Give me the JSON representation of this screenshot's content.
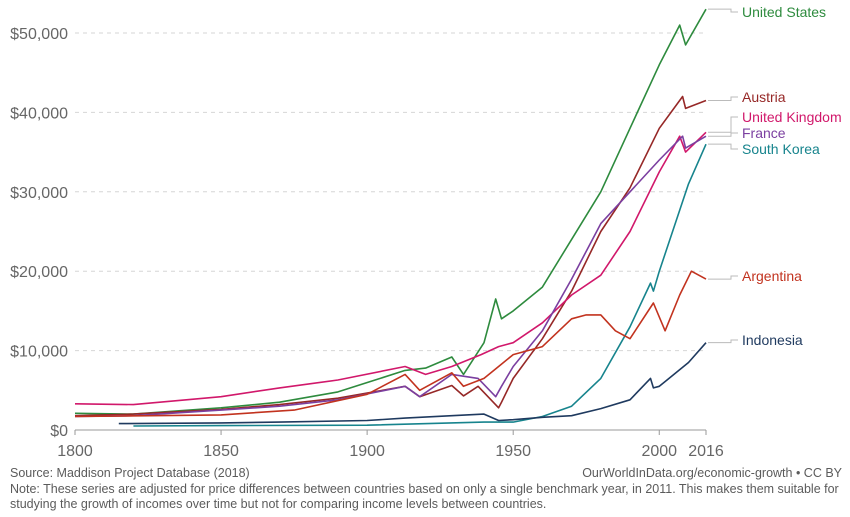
{
  "chart_data": {
    "type": "line",
    "title": "",
    "xlabel": "",
    "ylabel": "",
    "xlim": [
      1800,
      2016
    ],
    "ylim": [
      0,
      53000
    ],
    "grid": "horizontal dashed",
    "legend": "right (line-end labels)",
    "x_ticks": [
      "1800",
      "1850",
      "1900",
      "1950",
      "2000",
      "2016"
    ],
    "x_tick_values": [
      1800,
      1850,
      1900,
      1950,
      2000,
      2016
    ],
    "y_ticks": [
      "$0",
      "$10,000",
      "$20,000",
      "$30,000",
      "$40,000",
      "$50,000"
    ],
    "y_tick_values": [
      0,
      10000,
      20000,
      30000,
      40000,
      50000
    ],
    "series": [
      {
        "name": "United States",
        "color": "#2e8b3e",
        "x": [
          1800,
          1820,
          1850,
          1870,
          1890,
          1913,
          1920,
          1929,
          1933,
          1940,
          1944,
          1946,
          1950,
          1960,
          1970,
          1980,
          1990,
          2000,
          2007,
          2009,
          2016
        ],
        "y": [
          2100,
          2000,
          2800,
          3500,
          4800,
          7500,
          7800,
          9200,
          7000,
          11000,
          16500,
          14000,
          15000,
          18000,
          24000,
          30000,
          38000,
          46000,
          51000,
          48500,
          53000
        ]
      },
      {
        "name": "Austria",
        "color": "#962827",
        "x": [
          1800,
          1820,
          1850,
          1870,
          1890,
          1913,
          1918,
          1929,
          1933,
          1938,
          1945,
          1946,
          1950,
          1960,
          1970,
          1980,
          1990,
          2000,
          2008,
          2009,
          2016
        ],
        "y": [
          1800,
          2000,
          2600,
          3200,
          4000,
          5500,
          4200,
          5600,
          4300,
          5500,
          2800,
          3500,
          6500,
          11500,
          17500,
          25000,
          30500,
          38000,
          42000,
          40500,
          41500
        ]
      },
      {
        "name": "United Kingdom",
        "color": "#d1186b",
        "x": [
          1800,
          1820,
          1850,
          1870,
          1890,
          1913,
          1920,
          1929,
          1939,
          1945,
          1950,
          1960,
          1970,
          1980,
          1990,
          2000,
          2007,
          2009,
          2016
        ],
        "y": [
          3300,
          3200,
          4200,
          5300,
          6300,
          8000,
          7000,
          8000,
          9500,
          10500,
          11000,
          13500,
          17000,
          19500,
          25000,
          32500,
          37000,
          35000,
          37500
        ]
      },
      {
        "name": "France",
        "color": "#7b3fa0",
        "x": [
          1800,
          1820,
          1850,
          1870,
          1890,
          1913,
          1918,
          1929,
          1938,
          1944,
          1946,
          1950,
          1960,
          1970,
          1980,
          1990,
          2000,
          2008,
          2009,
          2016
        ],
        "y": [
          1700,
          1800,
          2500,
          3000,
          3800,
          5500,
          4200,
          7000,
          6500,
          4200,
          5500,
          8000,
          12500,
          19000,
          26000,
          30000,
          34000,
          37000,
          35500,
          37000
        ]
      },
      {
        "name": "South Korea",
        "color": "#17848d",
        "x": [
          1820,
          1850,
          1900,
          1940,
          1950,
          1960,
          1970,
          1980,
          1990,
          1997,
          1998,
          2000,
          2010,
          2016
        ],
        "y": [
          500,
          550,
          600,
          1000,
          1000,
          1700,
          3000,
          6500,
          13000,
          18500,
          17500,
          20000,
          31000,
          36000
        ]
      },
      {
        "name": "Argentina",
        "color": "#c2331f",
        "x": [
          1800,
          1850,
          1875,
          1900,
          1913,
          1918,
          1929,
          1933,
          1940,
          1945,
          1950,
          1960,
          1970,
          1975,
          1980,
          1985,
          1990,
          1998,
          2002,
          2007,
          2011,
          2016
        ],
        "y": [
          1700,
          1900,
          2500,
          4500,
          7000,
          5000,
          7200,
          5500,
          6500,
          8000,
          9500,
          10500,
          14000,
          14500,
          14500,
          12500,
          11500,
          16000,
          12500,
          17000,
          20000,
          19000
        ]
      },
      {
        "name": "Indonesia",
        "color": "#1f3a5f",
        "x": [
          1815,
          1850,
          1870,
          1900,
          1913,
          1929,
          1940,
          1945,
          1950,
          1960,
          1970,
          1980,
          1990,
          1997,
          1998,
          2000,
          2010,
          2016
        ],
        "y": [
          800,
          900,
          1000,
          1200,
          1500,
          1800,
          2000,
          1200,
          1300,
          1600,
          1800,
          2700,
          3800,
          6500,
          5300,
          5500,
          8500,
          11000
        ]
      }
    ],
    "series_labels": [
      "United States",
      "Austria",
      "United Kingdom",
      "France",
      "South Korea",
      "Argentina",
      "Indonesia"
    ]
  },
  "footer": {
    "source": "Source: Maddison Project Database (2018)",
    "credit": "OurWorldInData.org/economic-growth • CC BY",
    "note": "Note: These series are adjusted for price differences between countries based on only a single benchmark year, in 2011. This makes them suitable for studying the growth of incomes over time but not for comparing income levels between countries."
  }
}
